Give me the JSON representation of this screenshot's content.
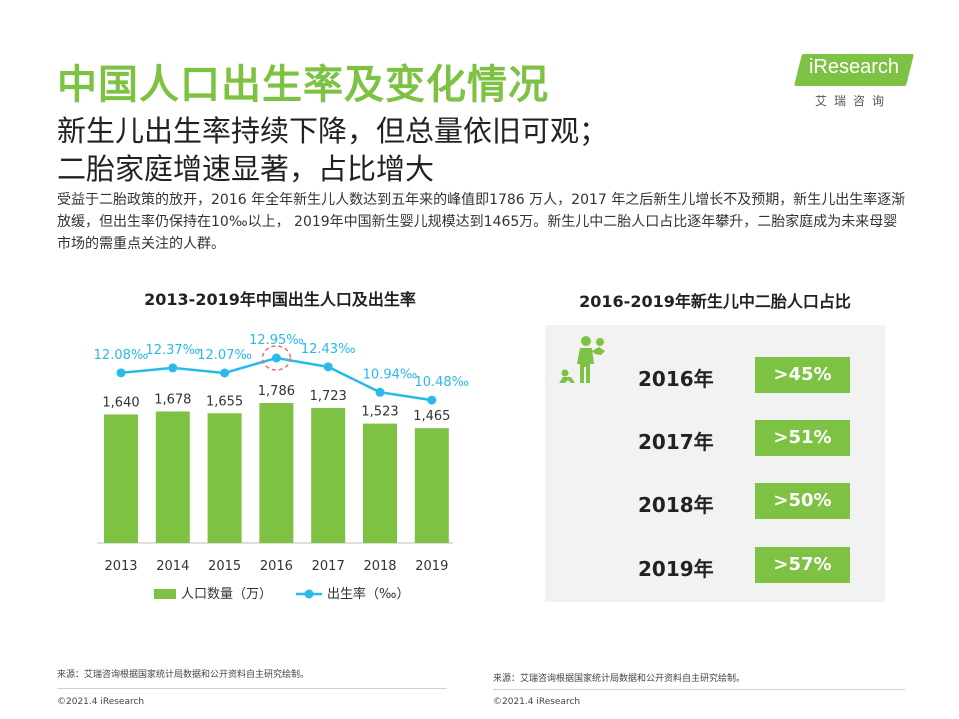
{
  "header": {
    "title": "中国人口出生率及变化情况",
    "subtitle_line1": "新生儿出生率持续下降，但总量依旧可观；",
    "subtitle_line2": "二胎家庭增速显著，占比增大"
  },
  "logo": {
    "text": "iResearch",
    "sub": "艾瑞咨询"
  },
  "intro": "受益于二胎政策的放开，2016 年全年新生儿人数达到五年来的峰值即1786 万人，2017 年之后新生儿增长不及预期，新生儿出生率逐渐放缓，但出生率仍保持在10‰以上， 2019年中国新生婴儿规模达到1465万。新生儿中二胎人口占比逐年攀升，二胎家庭成为未来母婴市场的需重点关注的人群。",
  "colors": {
    "green": "#7DC242",
    "blue": "#29B9EA",
    "highlight_circle": "#E57373"
  },
  "chart_data": [
    {
      "type": "bar+line",
      "title": "2013-2019年中国出生人口及出生率",
      "categories": [
        "2013",
        "2014",
        "2015",
        "2016",
        "2017",
        "2018",
        "2019"
      ],
      "series": [
        {
          "name": "人口数量（万）",
          "type": "bar",
          "values": [
            1640,
            1678,
            1655,
            1786,
            1723,
            1523,
            1465
          ],
          "labels": [
            "1,640",
            "1,678",
            "1,655",
            "1,786",
            "1,723",
            "1,523",
            "1,465"
          ]
        },
        {
          "name": "出生率（‰）",
          "type": "line",
          "values": [
            12.08,
            12.37,
            12.07,
            12.95,
            12.43,
            10.94,
            10.48
          ],
          "labels": [
            "12.08‰",
            "12.37‰",
            "12.07‰",
            "12.95‰",
            "12.43‰",
            "10.94‰",
            "10.48‰"
          ]
        }
      ],
      "highlight": "2016",
      "legend_position": "bottom"
    },
    {
      "type": "table",
      "title": "2016-2019年新生儿中二胎人口占比",
      "rows": [
        {
          "year": "2016年",
          "share": ">45%"
        },
        {
          "year": "2017年",
          "share": ">51%"
        },
        {
          "year": "2018年",
          "share": ">50%"
        },
        {
          "year": "2019年",
          "share": ">57%"
        }
      ]
    }
  ],
  "footer": {
    "source_left": "来源：艾瑞咨询根据国家统计局数据和公开资料自主研究绘制。",
    "source_right": "来源：艾瑞咨询根据国家统计局数据和公开资料自主研究绘制。",
    "copyright_left": "©2021.4 iResearch",
    "copyright_right": "©2021.4 iResearch"
  }
}
